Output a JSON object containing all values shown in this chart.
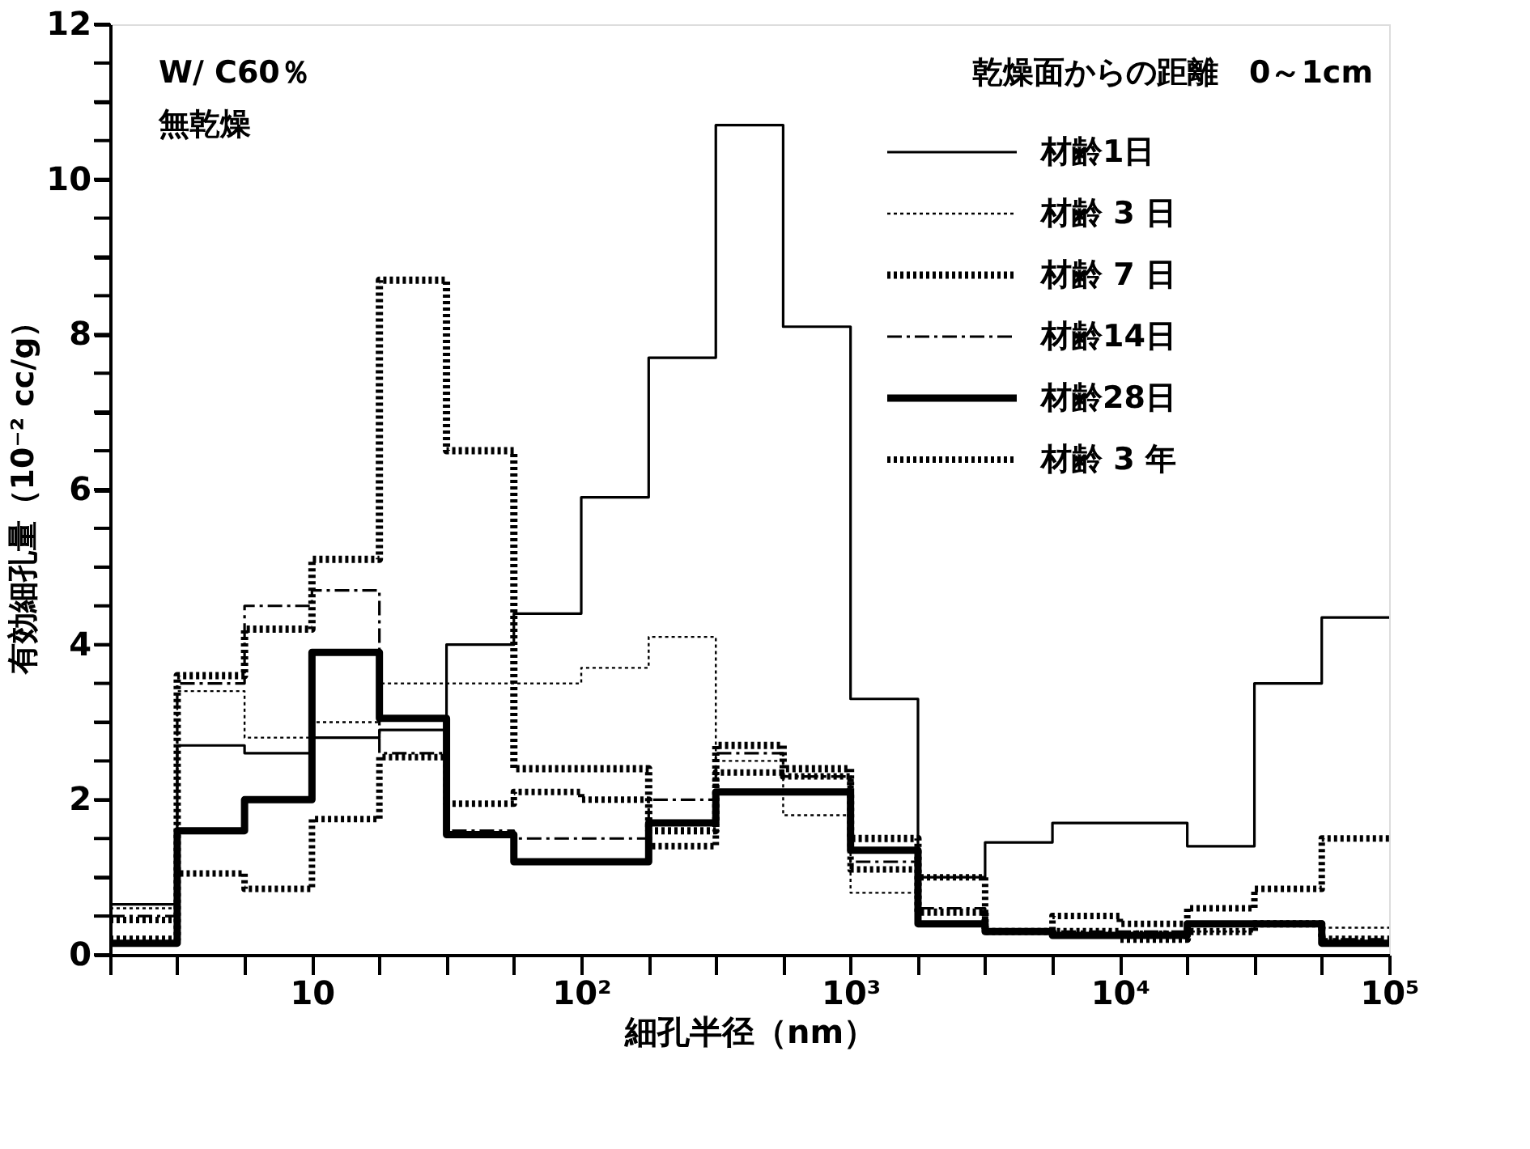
{
  "chart_data": {
    "type": "step",
    "xlabel": "細孔半径（nm）",
    "ylabel": "有効細孔量（10⁻² cc/g）",
    "annotations": [
      "W/ C60％",
      "無乾燥",
      "乾燥面からの距離　0～1cm"
    ],
    "x": [
      1.78,
      3.16,
      5.62,
      10,
      17.8,
      31.6,
      56.2,
      100,
      178,
      316,
      562,
      1000,
      1780,
      3160,
      5620,
      10000,
      17800,
      31600,
      56200,
      100000
    ],
    "series": [
      {
        "name": "材齢1日",
        "color": "#000000",
        "line_style": "solid",
        "values": [
          0.65,
          2.7,
          2.6,
          2.8,
          2.9,
          4.0,
          4.4,
          5.9,
          7.7,
          10.7,
          8.1,
          3.3,
          1.0,
          1.45,
          1.7,
          1.7,
          1.4,
          3.5,
          4.35,
          4.35
        ]
      },
      {
        "name": "材齢 3 日",
        "color": "#000000",
        "line_style": "dotted",
        "values": [
          0.6,
          3.4,
          2.8,
          3.0,
          3.5,
          3.5,
          3.5,
          3.7,
          4.1,
          2.5,
          1.8,
          0.8,
          0.4,
          0.3,
          0.25,
          0.3,
          0.3,
          0.4,
          0.35,
          0.35
        ]
      },
      {
        "name": "材齢 7 日",
        "color": "#000000",
        "line_style": "dotted",
        "values": [
          0.2,
          3.6,
          4.2,
          5.1,
          8.7,
          6.5,
          2.4,
          2.4,
          1.6,
          2.7,
          2.4,
          1.5,
          0.55,
          0.3,
          0.3,
          0.2,
          0.3,
          0.4,
          0.2,
          0.2
        ]
      },
      {
        "name": "材齢14日",
        "color": "#000000",
        "line_style": "dashed",
        "values": [
          0.5,
          3.5,
          4.5,
          4.7,
          2.6,
          1.6,
          1.5,
          1.5,
          2.0,
          2.6,
          2.3,
          1.2,
          0.6,
          0.3,
          0.3,
          0.3,
          0.4,
          0.4,
          0.2,
          0.2
        ]
      },
      {
        "name": "材齢28日",
        "color": "#000000",
        "line_style": "solid",
        "values": [
          0.15,
          1.6,
          2.0,
          3.9,
          3.05,
          1.55,
          1.2,
          1.2,
          1.7,
          2.1,
          2.1,
          1.35,
          0.4,
          0.3,
          0.25,
          0.25,
          0.4,
          0.4,
          0.15,
          0.15
        ]
      },
      {
        "name": "材齢 3 年",
        "color": "#000000",
        "line_style": "dotted",
        "values": [
          0.45,
          1.05,
          0.85,
          1.75,
          2.55,
          1.95,
          2.1,
          2.0,
          1.4,
          2.35,
          2.3,
          1.1,
          1.0,
          0.3,
          0.5,
          0.4,
          0.6,
          0.85,
          1.5,
          1.5
        ]
      }
    ],
    "xlim": [
      1.78,
      100000
    ],
    "xticks": [
      {
        "value": 1.78,
        "label": null
      },
      {
        "value": 3.16,
        "label": null
      },
      {
        "value": 5.62,
        "label": null
      },
      {
        "value": 10,
        "label": "10"
      },
      {
        "value": 17.8,
        "label": null
      },
      {
        "value": 31.6,
        "label": null
      },
      {
        "value": 56.2,
        "label": null
      },
      {
        "value": 100,
        "label": "10²"
      },
      {
        "value": 178,
        "label": null
      },
      {
        "value": 316,
        "label": null
      },
      {
        "value": 562,
        "label": null
      },
      {
        "value": 1000,
        "label": "10³"
      },
      {
        "value": 1780,
        "label": null
      },
      {
        "value": 3160,
        "label": null
      },
      {
        "value": 5620,
        "label": null
      },
      {
        "value": 10000,
        "label": "10⁴"
      },
      {
        "value": 17800,
        "label": null
      },
      {
        "value": 31600,
        "label": null
      },
      {
        "value": 56200,
        "label": null
      },
      {
        "value": 100000,
        "label": "10⁵"
      }
    ],
    "ylim": [
      0,
      12
    ],
    "yticks": [
      0,
      {
        "value": 0.5,
        "label": null
      },
      {
        "value": 1,
        "label": null
      },
      {
        "value": 1.5,
        "label": null
      },
      2,
      {
        "value": 2.5,
        "label": null
      },
      {
        "value": 3,
        "label": null
      },
      {
        "value": 3.5,
        "label": null
      },
      4,
      {
        "value": 4.5,
        "label": null
      },
      {
        "value": 5,
        "label": null
      },
      {
        "value": 5.5,
        "label": null
      },
      6,
      {
        "value": 6.5,
        "label": null
      },
      {
        "value": 7,
        "label": null
      },
      {
        "value": 7.5,
        "label": null
      },
      8,
      {
        "value": 8.5,
        "label": null
      },
      {
        "value": 9,
        "label": null
      },
      {
        "value": 9.5,
        "label": null
      },
      10,
      {
        "value": 10.5,
        "label": null
      },
      {
        "value": 11,
        "label": null
      },
      {
        "value": 11.5,
        "label": null
      },
      12
    ],
    "log": "x",
    "grid": false,
    "legend": "top right"
  }
}
